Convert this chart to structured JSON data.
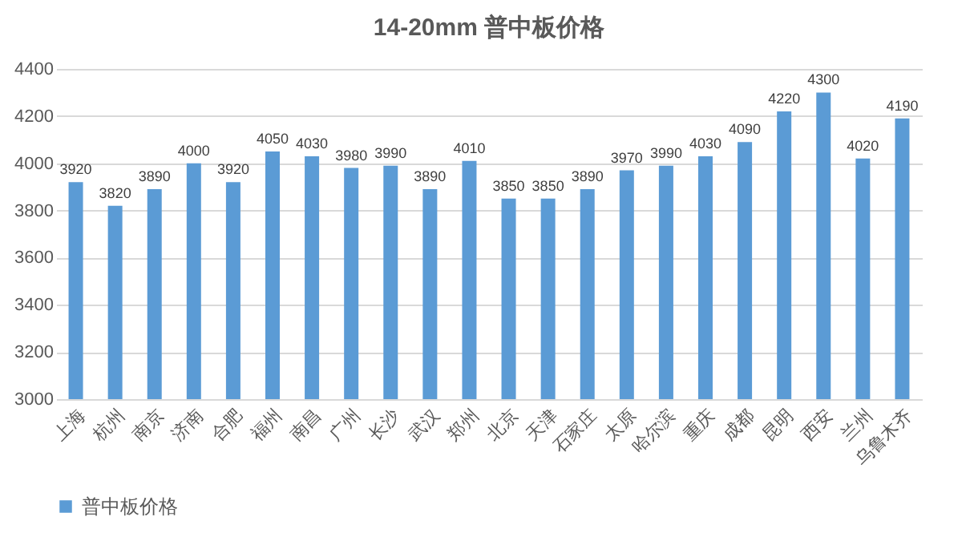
{
  "chart_data": {
    "type": "bar",
    "title": "14-20mm 普中板价格",
    "categories": [
      "上海",
      "杭州",
      "南京",
      "济南",
      "合肥",
      "福州",
      "南昌",
      "广州",
      "长沙",
      "武汉",
      "郑州",
      "北京",
      "天津",
      "石家庄",
      "太原",
      "哈尔滨",
      "重庆",
      "成都",
      "昆明",
      "西安",
      "兰州",
      "乌鲁木齐"
    ],
    "series": [
      {
        "name": "普中板价格",
        "color": "#5b9bd5",
        "values": [
          3920,
          3820,
          3890,
          4000,
          3920,
          4050,
          4030,
          3980,
          3990,
          3890,
          4010,
          3850,
          3850,
          3890,
          3970,
          3990,
          4030,
          4090,
          4220,
          4300,
          4020,
          4190
        ]
      }
    ],
    "ylim": [
      3000,
      4400
    ],
    "yticks": [
      3000,
      3200,
      3400,
      3600,
      3800,
      4000,
      4200,
      4400
    ],
    "grid": "y",
    "legend": "bottom",
    "data_labels": true
  }
}
